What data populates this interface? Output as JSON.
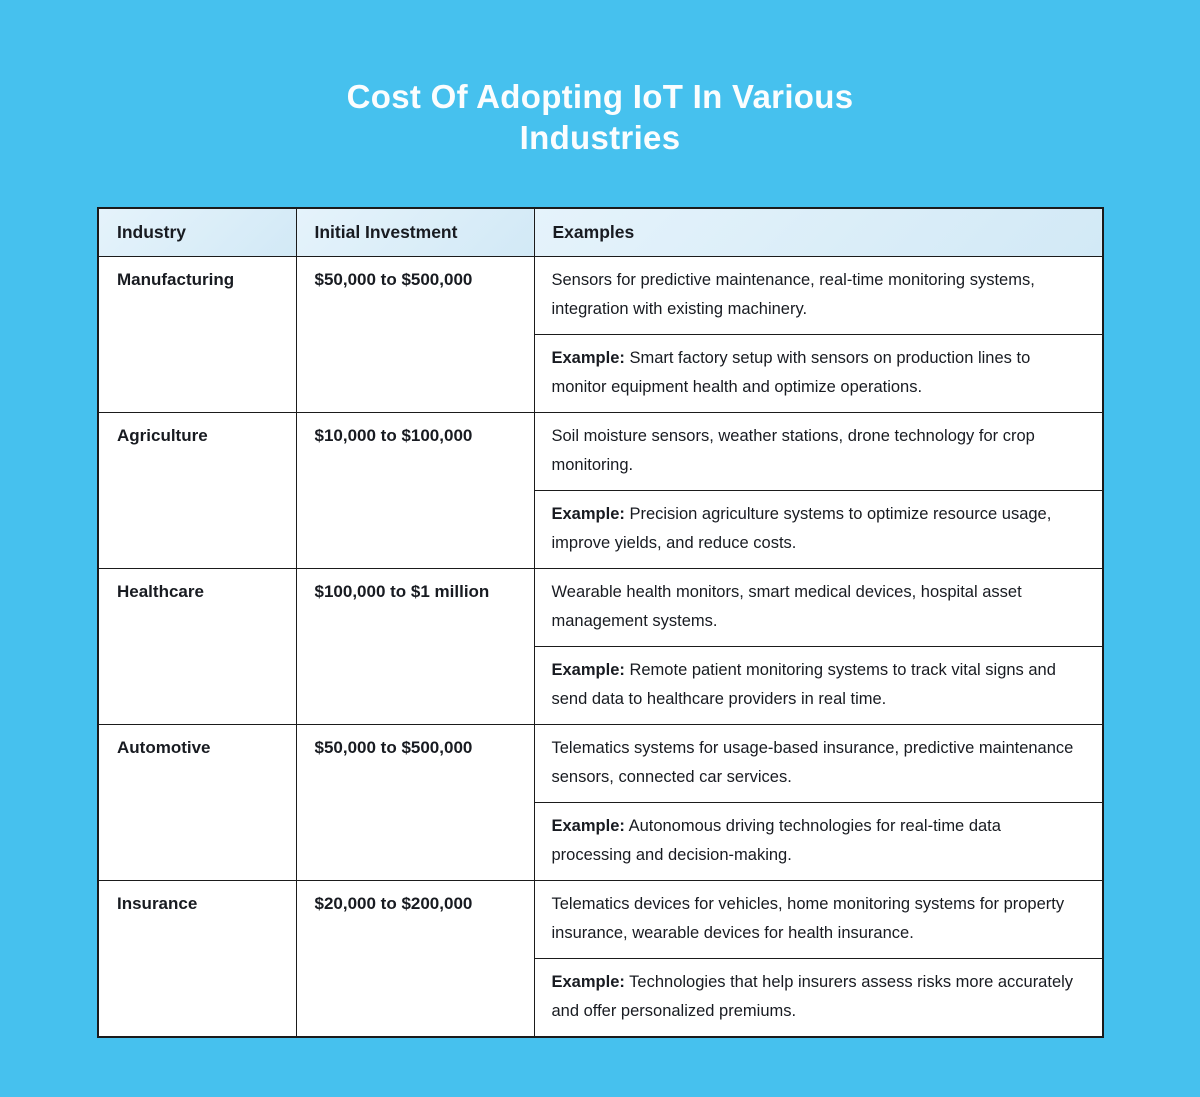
{
  "page": {
    "background_color": "#46C1EE",
    "title_line1": "Cost Of Adopting IoT In Various",
    "title_line2": "Industries"
  },
  "colors": {
    "header_bg": "#D8ECF8",
    "cell_bg": "#FFFFFF",
    "border": "#1B1B1B",
    "text": "#181B21"
  },
  "table": {
    "headers": [
      "Industry",
      "Initial Investment",
      "Examples"
    ],
    "rows": [
      {
        "industry": "Manufacturing",
        "investment": "$50,000 to $500,000",
        "description": "Sensors for predictive maintenance, real-time monitoring systems, integration with existing machinery.",
        "example_label": "Example:",
        "example_text": "Smart factory setup with sensors on production lines to monitor equipment health and optimize operations."
      },
      {
        "industry": "Agriculture",
        "investment": "$10,000 to $100,000",
        "description": "Soil moisture sensors, weather stations, drone technology for crop monitoring.",
        "example_label": "Example:",
        "example_text": "Precision agriculture systems to optimize resource usage, improve yields, and reduce costs."
      },
      {
        "industry": "Healthcare",
        "investment": "$100,000 to $1 million",
        "description": "Wearable health monitors, smart medical devices, hospital asset management systems.",
        "example_label": "Example:",
        "example_text": "Remote patient monitoring systems to track vital signs and send data to healthcare providers in real time."
      },
      {
        "industry": "Automotive",
        "investment": "$50,000 to $500,000",
        "description": "Telematics systems for usage-based insurance, predictive maintenance sensors, connected car services.",
        "example_label": "Example:",
        "example_text": "Autonomous driving technologies for real-time data processing and decision-making."
      },
      {
        "industry": "Insurance",
        "investment": "$20,000 to $200,000",
        "description": "Telematics devices for vehicles, home monitoring systems for property insurance, wearable devices for health insurance.",
        "example_label": "Example:",
        "example_text": "Technologies that help insurers assess risks more accurately and offer personalized premiums."
      }
    ]
  }
}
